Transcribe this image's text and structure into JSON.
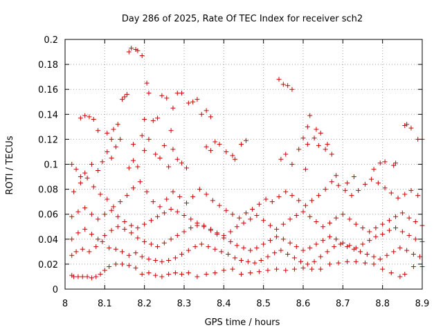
{
  "chart_data": {
    "type": "scatter",
    "title": "Day 286 of 2025, Rate Of TEC Index for receiver sch2",
    "xlabel": "GPS time / hours",
    "ylabel": "ROTI / TECUs",
    "xlim": [
      8.0,
      8.9
    ],
    "ylim": [
      0,
      0.2
    ],
    "xticks": [
      "8",
      "8.1",
      "8.2",
      "8.3",
      "8.4",
      "8.5",
      "8.6",
      "8.7",
      "8.8",
      "8.9"
    ],
    "yticks": [
      "0",
      "0.02",
      "0.04",
      "0.06",
      "0.08",
      "0.1",
      "0.12",
      "0.14",
      "0.16",
      "0.18",
      "0.2"
    ],
    "grid": true,
    "marker": "+",
    "color": "#cc0000",
    "points": [
      [
        8.017,
        0.011
      ],
      [
        8.022,
        0.01
      ],
      [
        8.033,
        0.01
      ],
      [
        8.044,
        0.01
      ],
      [
        8.056,
        0.01
      ],
      [
        8.067,
        0.009
      ],
      [
        8.078,
        0.01
      ],
      [
        8.089,
        0.012
      ],
      [
        8.1,
        0.015
      ],
      [
        8.111,
        0.018
      ],
      [
        8.128,
        0.02
      ],
      [
        8.144,
        0.02
      ],
      [
        8.161,
        0.019
      ],
      [
        8.178,
        0.017
      ],
      [
        8.194,
        0.012
      ],
      [
        8.211,
        0.013
      ],
      [
        8.228,
        0.011
      ],
      [
        8.244,
        0.01
      ],
      [
        8.261,
        0.012
      ],
      [
        8.278,
        0.013
      ],
      [
        8.294,
        0.012
      ],
      [
        8.311,
        0.013
      ],
      [
        8.333,
        0.01
      ],
      [
        8.356,
        0.012
      ],
      [
        8.378,
        0.013
      ],
      [
        8.4,
        0.015
      ],
      [
        8.422,
        0.016
      ],
      [
        8.444,
        0.012
      ],
      [
        8.467,
        0.013
      ],
      [
        8.489,
        0.014
      ],
      [
        8.511,
        0.015
      ],
      [
        8.533,
        0.016
      ],
      [
        8.556,
        0.015
      ],
      [
        8.578,
        0.016
      ],
      [
        8.6,
        0.017
      ],
      [
        8.622,
        0.016
      ],
      [
        8.644,
        0.016
      ],
      [
        8.667,
        0.02
      ],
      [
        8.689,
        0.021
      ],
      [
        8.711,
        0.022
      ],
      [
        8.733,
        0.022
      ],
      [
        8.756,
        0.021
      ],
      [
        8.778,
        0.02
      ],
      [
        8.8,
        0.016
      ],
      [
        8.822,
        0.013
      ],
      [
        8.844,
        0.01
      ],
      [
        8.856,
        0.012
      ],
      [
        8.878,
        0.018
      ],
      [
        8.9,
        0.018
      ],
      [
        8.017,
        0.027
      ],
      [
        8.028,
        0.03
      ],
      [
        8.044,
        0.032
      ],
      [
        8.061,
        0.03
      ],
      [
        8.078,
        0.034
      ],
      [
        8.094,
        0.038
      ],
      [
        8.111,
        0.033
      ],
      [
        8.128,
        0.032
      ],
      [
        8.144,
        0.03
      ],
      [
        8.161,
        0.027
      ],
      [
        8.178,
        0.029
      ],
      [
        8.194,
        0.026
      ],
      [
        8.211,
        0.024
      ],
      [
        8.228,
        0.023
      ],
      [
        8.244,
        0.022
      ],
      [
        8.261,
        0.023
      ],
      [
        8.278,
        0.025
      ],
      [
        8.294,
        0.028
      ],
      [
        8.311,
        0.031
      ],
      [
        8.328,
        0.034
      ],
      [
        8.344,
        0.036
      ],
      [
        8.361,
        0.034
      ],
      [
        8.378,
        0.032
      ],
      [
        8.394,
        0.03
      ],
      [
        8.411,
        0.028
      ],
      [
        8.428,
        0.025
      ],
      [
        8.444,
        0.023
      ],
      [
        8.461,
        0.022
      ],
      [
        8.478,
        0.021
      ],
      [
        8.494,
        0.023
      ],
      [
        8.511,
        0.026
      ],
      [
        8.528,
        0.029
      ],
      [
        8.544,
        0.031
      ],
      [
        8.561,
        0.028
      ],
      [
        8.578,
        0.025
      ],
      [
        8.594,
        0.022
      ],
      [
        8.611,
        0.02
      ],
      [
        8.628,
        0.022
      ],
      [
        8.644,
        0.026
      ],
      [
        8.661,
        0.03
      ],
      [
        8.678,
        0.034
      ],
      [
        8.694,
        0.036
      ],
      [
        8.711,
        0.034
      ],
      [
        8.728,
        0.032
      ],
      [
        8.744,
        0.03
      ],
      [
        8.761,
        0.028
      ],
      [
        8.778,
        0.026
      ],
      [
        8.794,
        0.024
      ],
      [
        8.811,
        0.027
      ],
      [
        8.828,
        0.03
      ],
      [
        8.844,
        0.033
      ],
      [
        8.861,
        0.031
      ],
      [
        8.878,
        0.028
      ],
      [
        8.894,
        0.026
      ],
      [
        8.017,
        0.04
      ],
      [
        8.033,
        0.045
      ],
      [
        8.05,
        0.048
      ],
      [
        8.067,
        0.044
      ],
      [
        8.083,
        0.04
      ],
      [
        8.1,
        0.043
      ],
      [
        8.117,
        0.047
      ],
      [
        8.133,
        0.05
      ],
      [
        8.15,
        0.048
      ],
      [
        8.167,
        0.045
      ],
      [
        8.183,
        0.041
      ],
      [
        8.2,
        0.038
      ],
      [
        8.217,
        0.036
      ],
      [
        8.233,
        0.034
      ],
      [
        8.25,
        0.037
      ],
      [
        8.267,
        0.04
      ],
      [
        8.283,
        0.043
      ],
      [
        8.3,
        0.046
      ],
      [
        8.317,
        0.049
      ],
      [
        8.333,
        0.051
      ],
      [
        8.35,
        0.05
      ],
      [
        8.367,
        0.047
      ],
      [
        8.383,
        0.044
      ],
      [
        8.4,
        0.041
      ],
      [
        8.417,
        0.038
      ],
      [
        8.433,
        0.035
      ],
      [
        8.45,
        0.033
      ],
      [
        8.467,
        0.031
      ],
      [
        8.483,
        0.033
      ],
      [
        8.5,
        0.036
      ],
      [
        8.517,
        0.039
      ],
      [
        8.533,
        0.042
      ],
      [
        8.55,
        0.04
      ],
      [
        8.567,
        0.037
      ],
      [
        8.583,
        0.034
      ],
      [
        8.6,
        0.031
      ],
      [
        8.617,
        0.033
      ],
      [
        8.633,
        0.036
      ],
      [
        8.65,
        0.039
      ],
      [
        8.667,
        0.042
      ],
      [
        8.683,
        0.04
      ],
      [
        8.7,
        0.037
      ],
      [
        8.717,
        0.035
      ],
      [
        8.733,
        0.033
      ],
      [
        8.75,
        0.036
      ],
      [
        8.767,
        0.039
      ],
      [
        8.783,
        0.042
      ],
      [
        8.8,
        0.044
      ],
      [
        8.817,
        0.047
      ],
      [
        8.833,
        0.049
      ],
      [
        8.85,
        0.046
      ],
      [
        8.867,
        0.043
      ],
      [
        8.883,
        0.04
      ],
      [
        8.9,
        0.038
      ],
      [
        8.017,
        0.058
      ],
      [
        8.033,
        0.062
      ],
      [
        8.05,
        0.065
      ],
      [
        8.067,
        0.06
      ],
      [
        8.083,
        0.056
      ],
      [
        8.1,
        0.06
      ],
      [
        8.117,
        0.063
      ],
      [
        8.133,
        0.058
      ],
      [
        8.15,
        0.054
      ],
      [
        8.167,
        0.051
      ],
      [
        8.183,
        0.049
      ],
      [
        8.2,
        0.052
      ],
      [
        8.217,
        0.055
      ],
      [
        8.233,
        0.058
      ],
      [
        8.25,
        0.061
      ],
      [
        8.267,
        0.064
      ],
      [
        8.283,
        0.062
      ],
      [
        8.3,
        0.059
      ],
      [
        8.317,
        0.056
      ],
      [
        8.333,
        0.053
      ],
      [
        8.35,
        0.051
      ],
      [
        8.367,
        0.048
      ],
      [
        8.383,
        0.045
      ],
      [
        8.4,
        0.043
      ],
      [
        8.417,
        0.046
      ],
      [
        8.433,
        0.05
      ],
      [
        8.45,
        0.053
      ],
      [
        8.467,
        0.056
      ],
      [
        8.483,
        0.059
      ],
      [
        8.5,
        0.055
      ],
      [
        8.517,
        0.051
      ],
      [
        8.533,
        0.048
      ],
      [
        8.55,
        0.052
      ],
      [
        8.567,
        0.056
      ],
      [
        8.583,
        0.059
      ],
      [
        8.6,
        0.062
      ],
      [
        8.617,
        0.058
      ],
      [
        8.633,
        0.054
      ],
      [
        8.65,
        0.05
      ],
      [
        8.667,
        0.053
      ],
      [
        8.683,
        0.057
      ],
      [
        8.7,
        0.06
      ],
      [
        8.717,
        0.056
      ],
      [
        8.733,
        0.052
      ],
      [
        8.75,
        0.049
      ],
      [
        8.767,
        0.046
      ],
      [
        8.783,
        0.049
      ],
      [
        8.8,
        0.052
      ],
      [
        8.817,
        0.055
      ],
      [
        8.833,
        0.058
      ],
      [
        8.85,
        0.061
      ],
      [
        8.867,
        0.057
      ],
      [
        8.883,
        0.054
      ],
      [
        8.9,
        0.051
      ],
      [
        8.022,
        0.078
      ],
      [
        8.039,
        0.085
      ],
      [
        8.056,
        0.089
      ],
      [
        8.072,
        0.082
      ],
      [
        8.089,
        0.076
      ],
      [
        8.106,
        0.072
      ],
      [
        8.122,
        0.066
      ],
      [
        8.139,
        0.07
      ],
      [
        8.156,
        0.075
      ],
      [
        8.172,
        0.081
      ],
      [
        8.189,
        0.086
      ],
      [
        8.206,
        0.078
      ],
      [
        8.222,
        0.07
      ],
      [
        8.239,
        0.066
      ],
      [
        8.256,
        0.072
      ],
      [
        8.272,
        0.078
      ],
      [
        8.289,
        0.074
      ],
      [
        8.306,
        0.069
      ],
      [
        8.322,
        0.074
      ],
      [
        8.339,
        0.08
      ],
      [
        8.356,
        0.076
      ],
      [
        8.372,
        0.071
      ],
      [
        8.389,
        0.067
      ],
      [
        8.406,
        0.063
      ],
      [
        8.422,
        0.06
      ],
      [
        8.439,
        0.057
      ],
      [
        8.456,
        0.061
      ],
      [
        8.472,
        0.064
      ],
      [
        8.489,
        0.068
      ],
      [
        8.506,
        0.072
      ],
      [
        8.522,
        0.07
      ],
      [
        8.539,
        0.074
      ],
      [
        8.556,
        0.078
      ],
      [
        8.572,
        0.075
      ],
      [
        8.589,
        0.071
      ],
      [
        8.606,
        0.067
      ],
      [
        8.622,
        0.071
      ],
      [
        8.639,
        0.075
      ],
      [
        8.656,
        0.08
      ],
      [
        8.672,
        0.086
      ],
      [
        8.689,
        0.083
      ],
      [
        8.706,
        0.079
      ],
      [
        8.722,
        0.075
      ],
      [
        8.739,
        0.079
      ],
      [
        8.756,
        0.084
      ],
      [
        8.772,
        0.088
      ],
      [
        8.789,
        0.085
      ],
      [
        8.806,
        0.081
      ],
      [
        8.822,
        0.077
      ],
      [
        8.839,
        0.073
      ],
      [
        8.856,
        0.076
      ],
      [
        8.872,
        0.079
      ],
      [
        8.889,
        0.075
      ],
      [
        8.017,
        0.1
      ],
      [
        8.028,
        0.096
      ],
      [
        8.039,
        0.09
      ],
      [
        8.05,
        0.093
      ],
      [
        8.067,
        0.1
      ],
      [
        8.083,
        0.095
      ],
      [
        8.094,
        0.102
      ],
      [
        8.106,
        0.11
      ],
      [
        8.117,
        0.105
      ],
      [
        8.128,
        0.114
      ],
      [
        8.139,
        0.12
      ],
      [
        8.161,
        0.097
      ],
      [
        8.172,
        0.103
      ],
      [
        8.183,
        0.098
      ],
      [
        8.2,
        0.111
      ],
      [
        8.211,
        0.12
      ],
      [
        8.228,
        0.108
      ],
      [
        8.239,
        0.105
      ],
      [
        8.25,
        0.115
      ],
      [
        8.261,
        0.098
      ],
      [
        8.272,
        0.112
      ],
      [
        8.283,
        0.104
      ],
      [
        8.294,
        0.101
      ],
      [
        8.306,
        0.097
      ],
      [
        8.356,
        0.114
      ],
      [
        8.367,
        0.111
      ],
      [
        8.378,
        0.118
      ],
      [
        8.389,
        0.116
      ],
      [
        8.406,
        0.11
      ],
      [
        8.422,
        0.107
      ],
      [
        8.428,
        0.104
      ],
      [
        8.444,
        0.116
      ],
      [
        8.456,
        0.119
      ],
      [
        8.544,
        0.104
      ],
      [
        8.556,
        0.108
      ],
      [
        8.572,
        0.1
      ],
      [
        8.589,
        0.112
      ],
      [
        8.606,
        0.096
      ],
      [
        8.611,
        0.116
      ],
      [
        8.628,
        0.121
      ],
      [
        8.639,
        0.115
      ],
      [
        8.656,
        0.112
      ],
      [
        8.672,
        0.108
      ],
      [
        8.683,
        0.091
      ],
      [
        8.711,
        0.085
      ],
      [
        8.728,
        0.09
      ],
      [
        8.778,
        0.096
      ],
      [
        8.794,
        0.101
      ],
      [
        8.806,
        0.102
      ],
      [
        8.828,
        0.099
      ],
      [
        8.833,
        0.101
      ],
      [
        8.872,
        0.129
      ],
      [
        8.889,
        0.12
      ],
      [
        8.9,
        0.12
      ],
      [
        8.039,
        0.137
      ],
      [
        8.05,
        0.139
      ],
      [
        8.061,
        0.138
      ],
      [
        8.072,
        0.136
      ],
      [
        8.083,
        0.127
      ],
      [
        8.106,
        0.125
      ],
      [
        8.117,
        0.12
      ],
      [
        8.122,
        0.128
      ],
      [
        8.133,
        0.132
      ],
      [
        8.144,
        0.152
      ],
      [
        8.15,
        0.154
      ],
      [
        8.156,
        0.156
      ],
      [
        8.172,
        0.116
      ],
      [
        8.194,
        0.123
      ],
      [
        8.2,
        0.136
      ],
      [
        8.211,
        0.157
      ],
      [
        8.222,
        0.135
      ],
      [
        8.233,
        0.137
      ],
      [
        8.244,
        0.155
      ],
      [
        8.256,
        0.153
      ],
      [
        8.267,
        0.127
      ],
      [
        8.272,
        0.145
      ],
      [
        8.283,
        0.157
      ],
      [
        8.294,
        0.157
      ],
      [
        8.311,
        0.149
      ],
      [
        8.322,
        0.15
      ],
      [
        8.333,
        0.152
      ],
      [
        8.344,
        0.14
      ],
      [
        8.356,
        0.143
      ],
      [
        8.367,
        0.138
      ],
      [
        8.6,
        0.121
      ],
      [
        8.611,
        0.13
      ],
      [
        8.617,
        0.139
      ],
      [
        8.633,
        0.128
      ],
      [
        8.644,
        0.125
      ],
      [
        8.661,
        0.116
      ],
      [
        8.856,
        0.131
      ],
      [
        8.861,
        0.132
      ],
      [
        8.161,
        0.19
      ],
      [
        8.167,
        0.193
      ],
      [
        8.178,
        0.192
      ],
      [
        8.183,
        0.191
      ],
      [
        8.194,
        0.187
      ],
      [
        8.206,
        0.165
      ],
      [
        8.539,
        0.168
      ],
      [
        8.55,
        0.164
      ],
      [
        8.561,
        0.163
      ],
      [
        8.572,
        0.16
      ]
    ]
  }
}
